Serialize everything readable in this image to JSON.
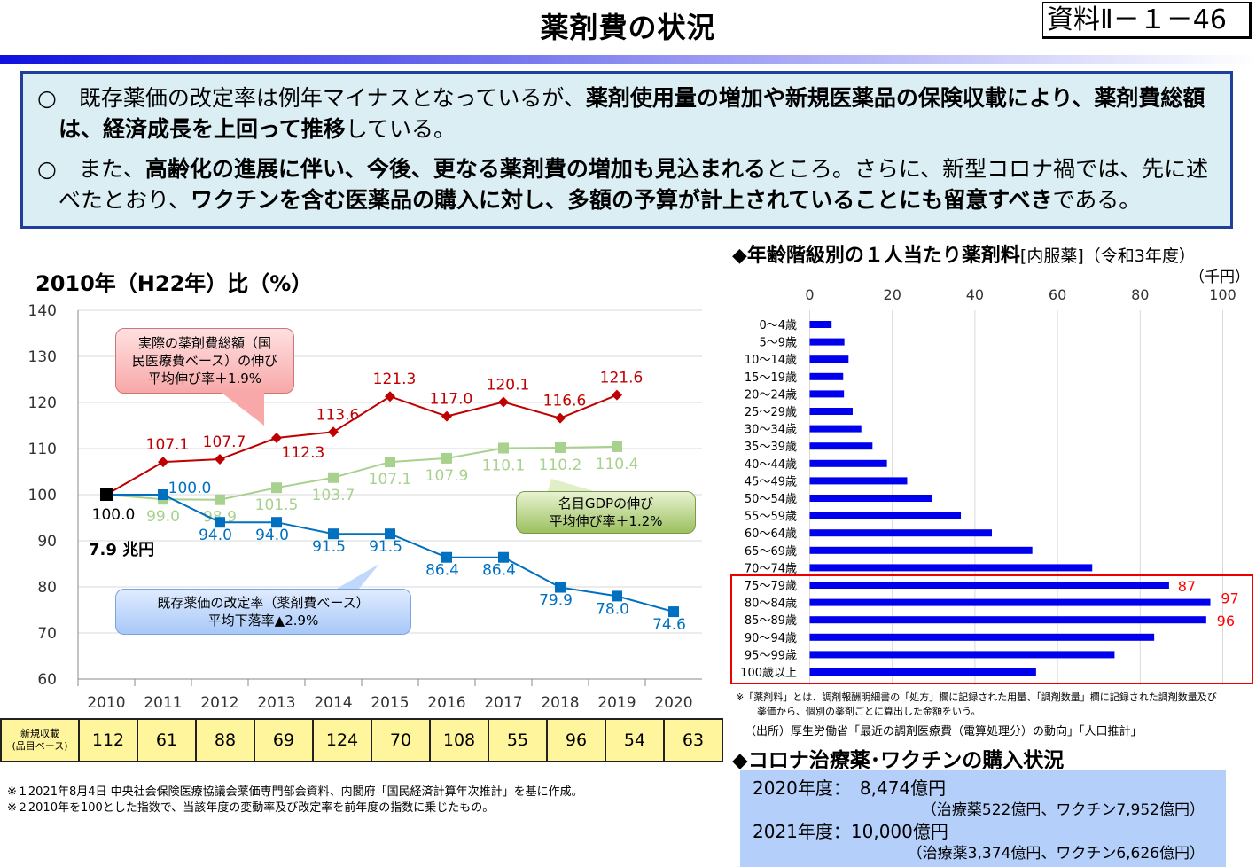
{
  "header": {
    "title": "薬剤費の状況",
    "doc_number": "資料Ⅱ－１－46"
  },
  "summary": {
    "bullets": [
      [
        {
          "t": "○　既存薬価の改定率は例年マイナスとなっているが、",
          "b": false
        },
        {
          "t": "薬剤使用量の増加や新規医薬品の保険収載により、薬剤費総額は、経済成長を上回って推移",
          "b": true
        },
        {
          "t": "している。",
          "b": false
        }
      ],
      [
        {
          "t": "○　また、",
          "b": false
        },
        {
          "t": "高齢化の進展に伴い、今後、更なる薬剤費の増加も見込まれる",
          "b": true
        },
        {
          "t": "ところ。さらに、新型コロナ禍では、先に述べたとおり、",
          "b": false
        },
        {
          "t": "ワクチンを含む医薬品の購入に対し、多額の予算が計上されていることにも留意すべき",
          "b": true
        },
        {
          "t": "である。",
          "b": false
        }
      ]
    ]
  },
  "chart_data": [
    {
      "type": "line",
      "title": "2010年（H22年）比（%）",
      "categories": [
        "2010",
        "2011",
        "2012",
        "2013",
        "2014",
        "2015",
        "2016",
        "2017",
        "2018",
        "2019",
        "2020"
      ],
      "ylim": [
        60,
        140
      ],
      "yticks": [
        60,
        70,
        80,
        90,
        100,
        110,
        120,
        130,
        140
      ],
      "grid": true,
      "base_point": {
        "x": "2010",
        "y": 100.0,
        "label": "100.0",
        "color": "#000000"
      },
      "base_note": "7.9 兆円",
      "series": [
        {
          "name": "実際の薬剤費総額（国民医療費ベース）の伸び",
          "color": "#c00000",
          "marker": "diamond",
          "values": [
            null,
            107.1,
            107.7,
            112.3,
            113.6,
            121.3,
            117.0,
            120.1,
            116.6,
            121.6,
            null
          ],
          "labels": [
            null,
            "107.1",
            "107.7",
            "112.3",
            "113.6",
            "121.3",
            "117.0",
            "120.1",
            "116.6",
            "121.6",
            null
          ]
        },
        {
          "name": "名目GDPの伸び",
          "color": "#a9d18e",
          "marker": "square",
          "values": [
            null,
            99.0,
            98.9,
            101.5,
            103.7,
            107.1,
            107.9,
            110.1,
            110.2,
            110.4,
            null
          ],
          "labels": [
            null,
            "99.0",
            "98.9",
            "101.5",
            "103.7",
            "107.1",
            "107.9",
            "110.1",
            "110.2",
            "110.4",
            null
          ]
        },
        {
          "name": "既存薬価の改定率（薬剤費ベース）",
          "color": "#0070c0",
          "marker": "square",
          "values": [
            null,
            100.0,
            94.0,
            94.0,
            91.5,
            91.5,
            86.4,
            86.4,
            79.9,
            78.0,
            74.6
          ],
          "labels": [
            null,
            "100.0",
            "94.0",
            "94.0",
            "91.5",
            "91.5",
            "86.4",
            "86.4",
            "79.9",
            "78.0",
            "74.6"
          ]
        }
      ],
      "annotations": {
        "red": [
          "実際の薬剤費総額（国",
          "民医療費ベース）の伸び",
          "平均伸び率＋1.9%"
        ],
        "blue": [
          "既存薬価の改定率（薬剤費ベース）",
          "平均下落率▲2.9%"
        ],
        "green": [
          "名目GDPの伸び",
          "平均伸び率＋1.2%"
        ]
      },
      "table": {
        "header": [
          "新規収載",
          "(品目ベース)"
        ],
        "values": [
          "112",
          "61",
          "88",
          "69",
          "124",
          "70",
          "108",
          "55",
          "96",
          "54",
          "63"
        ],
        "fill": "#fff59d"
      }
    },
    {
      "type": "bar",
      "orientation": "horizontal",
      "title": "◆年齢階級別の１人当たり薬剤料",
      "title_suffix": "[内服薬]（令和3年度）",
      "unit": "（千円）",
      "xlim": [
        0,
        100
      ],
      "xticks": [
        0,
        20,
        40,
        60,
        80,
        100
      ],
      "grid": true,
      "color": "#0000ee",
      "categories": [
        "0～4歳",
        "5～9歳",
        "10～14歳",
        "15～19歳",
        "20～24歳",
        "25～29歳",
        "30～34歳",
        "35～39歳",
        "40～44歳",
        "45～49歳",
        "50～54歳",
        "55～59歳",
        "60～64歳",
        "65～69歳",
        "70～74歳",
        "75～79歳",
        "80～84歳",
        "85～89歳",
        "90～94歳",
        "95～99歳",
        "100歳以上"
      ],
      "values": [
        5.3,
        8.4,
        9.4,
        8.1,
        8.3,
        10.4,
        12.5,
        15.2,
        18.7,
        23.6,
        29.7,
        36.6,
        44.1,
        53.9,
        68.4,
        87,
        97,
        96,
        83.4,
        73.8,
        54.8
      ],
      "data_labels": {
        "75～79歳": "87",
        "80～84歳": "97",
        "85～89歳": "96"
      },
      "label_color": "#ff0000",
      "highlight": "75～79歳 – 100歳以上"
    }
  ],
  "notes": {
    "left": [
      "※１2021年8月4日 中央社会保険医療協議会薬価専門部会資料、内閣府「国民経済計算年次推計」を基に作成。",
      "※２2010年を100とした指数で、当該年度の変動率及び改定率を前年度の指数に乗じたもの。"
    ],
    "right": [
      "※「薬剤料」とは、調剤報酬明細書の「処方」欄に記録された用量、「調剤数量」欄に記録された調剤数量及び",
      "薬価から、個別の薬剤ごとに算出した金額をいう。"
    ],
    "source": "（出所）厚生労働省「最近の調剤医療費（電算処理分）の動向」「人口推計」"
  },
  "corona": {
    "title": "◆コロナ治療薬･ワクチンの購入状況",
    "rows": [
      {
        "main": "2020年度：　8,474億円",
        "detail": "（治療薬522億円、ワクチン7,952億円）"
      },
      {
        "main": "2021年度：10,000億円",
        "detail": "（治療薬3,374億円、ワクチン6,626億円）"
      }
    ]
  }
}
